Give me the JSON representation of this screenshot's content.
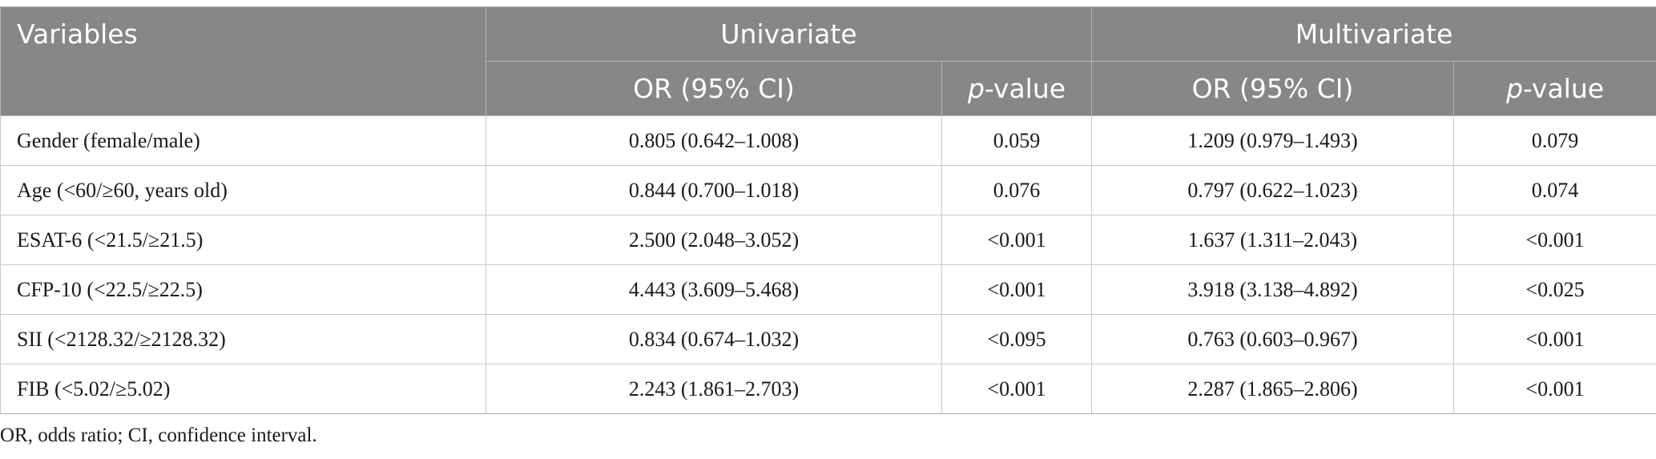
{
  "header": {
    "variables": "Variables",
    "univariate": "Univariate",
    "multivariate": "Multivariate",
    "or_ci": "OR (95% CI)",
    "p_italic": "p",
    "p_rest": "-value"
  },
  "rows": [
    {
      "variable": "Gender (female/male)",
      "uni_or": "0.805 (0.642–1.008)",
      "uni_p": "0.059",
      "multi_or": "1.209 (0.979–1.493)",
      "multi_p": "0.079"
    },
    {
      "variable": "Age (<60/≥60, years old)",
      "uni_or": "0.844 (0.700–1.018)",
      "uni_p": "0.076",
      "multi_or": "0.797 (0.622–1.023)",
      "multi_p": "0.074"
    },
    {
      "variable": "ESAT-6 (<21.5/≥21.5)",
      "uni_or": "2.500 (2.048–3.052)",
      "uni_p": "<0.001",
      "multi_or": "1.637 (1.311–2.043)",
      "multi_p": "<0.001"
    },
    {
      "variable": "CFP-10 (<22.5/≥22.5)",
      "uni_or": "4.443 (3.609–5.468)",
      "uni_p": "<0.001",
      "multi_or": "3.918 (3.138–4.892)",
      "multi_p": "<0.025"
    },
    {
      "variable": "SII (<2128.32/≥2128.32)",
      "uni_or": "0.834 (0.674–1.032)",
      "uni_p": "<0.095",
      "multi_or": "0.763 (0.603–0.967)",
      "multi_p": "<0.001"
    },
    {
      "variable": "FIB (<5.02/≥5.02)",
      "uni_or": "2.243 (1.861–2.703)",
      "uni_p": "<0.001",
      "multi_or": "2.287 (1.865–2.806)",
      "multi_p": "<0.001"
    }
  ],
  "footnote": "OR, odds ratio; CI, confidence interval.",
  "colors": {
    "header_bg": "#878886",
    "header_text": "#ffffff",
    "border": "#c9c9c9"
  }
}
